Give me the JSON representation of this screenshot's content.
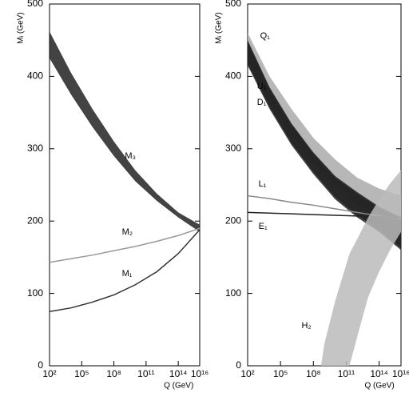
{
  "chart_data": [
    {
      "type": "line",
      "log_x": true,
      "x_label": "Q (GeV)",
      "y_label": "Mᵢ (GeV)",
      "xlim": [
        100,
        1e+16
      ],
      "ylim": [
        0,
        500
      ],
      "xticks": [
        {
          "value": 100,
          "label": "10²"
        },
        {
          "value": 100000.0,
          "label": "10⁵"
        },
        {
          "value": 100000000.0,
          "label": "10⁸"
        },
        {
          "value": 100000000000.0,
          "label": "10¹¹"
        },
        {
          "value": 100000000000000.0,
          "label": "10¹⁴"
        },
        {
          "value": 1e+16,
          "label": "10¹⁶"
        }
      ],
      "yticks": [
        0,
        100,
        200,
        300,
        400,
        500
      ],
      "x": [
        100,
        10000.0,
        1000000.0,
        100000000.0,
        10000000000.0,
        1000000000000.0,
        100000000000000.0,
        1e+16
      ],
      "series": [
        {
          "name": "M₃",
          "color": "#222222",
          "high": [
            462,
            405,
            355,
            310,
            270,
            238,
            212,
            195
          ],
          "low": [
            425,
            375,
            330,
            290,
            255,
            228,
            205,
            185
          ]
        },
        {
          "name": "M₂",
          "color": "#999999",
          "values": [
            143,
            148,
            153,
            159,
            165,
            172,
            180,
            190
          ]
        },
        {
          "name": "M₁",
          "color": "#333333",
          "values": [
            75,
            80,
            88,
            98,
            112,
            130,
            155,
            188
          ]
        }
      ]
    },
    {
      "type": "line",
      "log_x": true,
      "x_label": "Q (GeV)",
      "y_label": "Mᵢ (GeV)",
      "xlim": [
        100,
        1e+16
      ],
      "ylim": [
        0,
        500
      ],
      "xticks": [
        {
          "value": 100,
          "label": "10²"
        },
        {
          "value": 100000.0,
          "label": "10⁵"
        },
        {
          "value": 100000000.0,
          "label": "10⁸"
        },
        {
          "value": 100000000000.0,
          "label": "10¹¹"
        },
        {
          "value": 100000000000000.0,
          "label": "10¹⁴"
        },
        {
          "value": 1e+16,
          "label": "10¹⁶"
        }
      ],
      "yticks": [
        0,
        100,
        200,
        300,
        400,
        500
      ],
      "x": [
        100,
        10000.0,
        1000000.0,
        100000000.0,
        10000000000.0,
        1000000000000.0,
        100000000000000.0,
        1e+16
      ],
      "series": [
        {
          "name": "Q₁",
          "color": "#aaaaaa",
          "high": [
            460,
            400,
            355,
            315,
            285,
            260,
            245,
            235
          ],
          "low": [
            420,
            365,
            320,
            280,
            250,
            225,
            205,
            190
          ]
        },
        {
          "name": "U₁",
          "color": "#222222",
          "high": [
            450,
            385,
            335,
            295,
            262,
            240,
            220,
            205
          ],
          "low": [
            415,
            355,
            305,
            265,
            230,
            205,
            185,
            160
          ]
        },
        {
          "name": "D₁",
          "color": "#222222",
          "high": [
            448,
            383,
            333,
            293,
            260,
            238,
            218,
            203
          ],
          "low": [
            418,
            358,
            308,
            268,
            233,
            208,
            188,
            163
          ]
        },
        {
          "name": "L₁",
          "color": "#888888",
          "values": [
            235,
            231,
            226,
            222,
            217,
            212,
            207,
            203
          ]
        },
        {
          "name": "E₁",
          "color": "#222222",
          "values": [
            212,
            211,
            210,
            209,
            208,
            207,
            206,
            204
          ]
        },
        {
          "name": "H₂",
          "color": "#bbbbbb",
          "x": [
            500000000.0,
            1000000000.0,
            10000000000.0,
            100000000000.0,
            200000000000.0,
            1000000000000.0,
            10000000000000.0,
            100000000000000.0,
            1000000000000000.0,
            1e+16
          ],
          "high": [
            0,
            30,
            90,
            140,
            155,
            175,
            205,
            230,
            252,
            270
          ],
          "low": [
            0,
            0,
            0,
            0,
            0,
            40,
            95,
            130,
            160,
            185
          ]
        }
      ]
    }
  ]
}
